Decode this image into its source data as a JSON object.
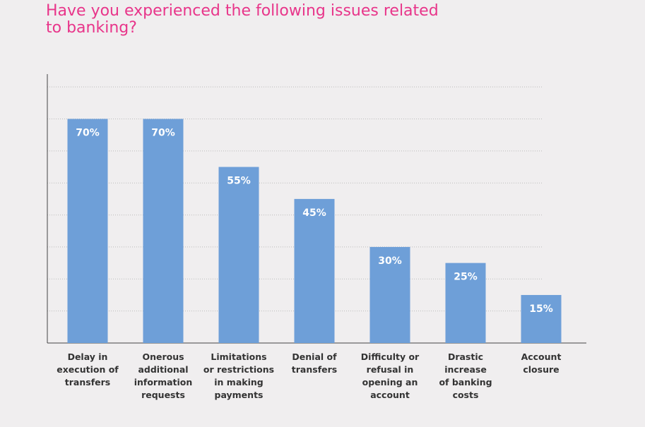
{
  "chart_data": {
    "type": "bar",
    "title": "Have you experienced the following issues related\nto banking?",
    "categories": [
      "Delay in\nexecution of\ntransfers",
      "Onerous\nadditional\ninformation\nrequests",
      "Limitations\nor restrictions\nin making\npayments",
      "Denial of\ntransfers",
      "Difficulty or\nrefusal in\nopening an\naccount",
      "Drastic\nincrease\nof banking\ncosts",
      "Account\nclosure"
    ],
    "values": [
      70,
      70,
      55,
      45,
      30,
      25,
      15
    ],
    "value_labels": [
      "70%",
      "70%",
      "55%",
      "45%",
      "30%",
      "25%",
      "15%"
    ],
    "color": "#6e9fd8",
    "ylim": [
      0,
      84
    ],
    "yticks": [
      10,
      20,
      30,
      40,
      50,
      60,
      70,
      80
    ],
    "grid": true
  }
}
